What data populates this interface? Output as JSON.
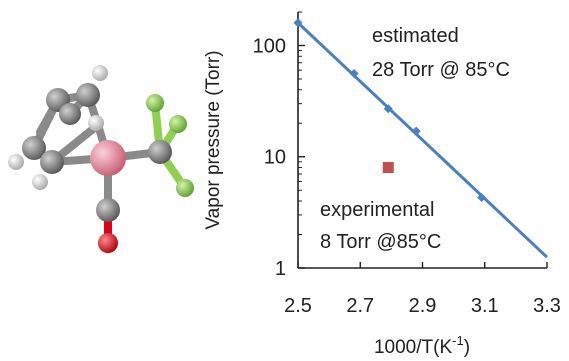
{
  "chart_data": {
    "type": "line",
    "title": "",
    "xlabel": "1000/T(K",
    "xlabel_exp": "-1",
    "xlabel_close": ")",
    "ylabel": "Vapor pressure (Torr)",
    "xlim": [
      2.5,
      3.3
    ],
    "ylim": [
      1,
      200
    ],
    "yscale": "log",
    "grid": false,
    "xticks": [
      2.5,
      2.7,
      2.9,
      3.1,
      3.3
    ],
    "xtick_labels": [
      "2.5",
      "2.7",
      "2.9",
      "3.1",
      "3.3"
    ],
    "yticks": [
      1,
      10,
      100
    ],
    "ytick_labels": [
      "1",
      "10",
      "100"
    ],
    "series": [
      {
        "kind": "line",
        "color": "#4a7fc1",
        "line": {
          "x": [
            2.5,
            3.3
          ],
          "y": [
            160,
            1.25
          ]
        },
        "markers": {
          "x": [
            2.5,
            2.68,
            2.79,
            2.88,
            3.09
          ],
          "y": [
            160,
            56,
            27,
            17,
            4.3
          ]
        }
      },
      {
        "kind": "scatter",
        "marker": "square",
        "color": "#c0504d",
        "x": [
          2.79
        ],
        "y": [
          8
        ]
      }
    ],
    "annotations": [
      {
        "id": "estimated",
        "lines": [
          "estimated",
          "28 Torr @ 85°C"
        ]
      },
      {
        "id": "experimental",
        "lines": [
          "experimental",
          "8 Torr @85°C"
        ]
      }
    ]
  },
  "molecule": {
    "description_icon": "molecule-ball-and-stick-icon",
    "colors": {
      "carbon": "#7d7d7d",
      "hydrogen": "#e6e6e6",
      "metal": "#e8889a",
      "fluorine": "#8fd14f",
      "oxygen": "#e0001a"
    }
  }
}
